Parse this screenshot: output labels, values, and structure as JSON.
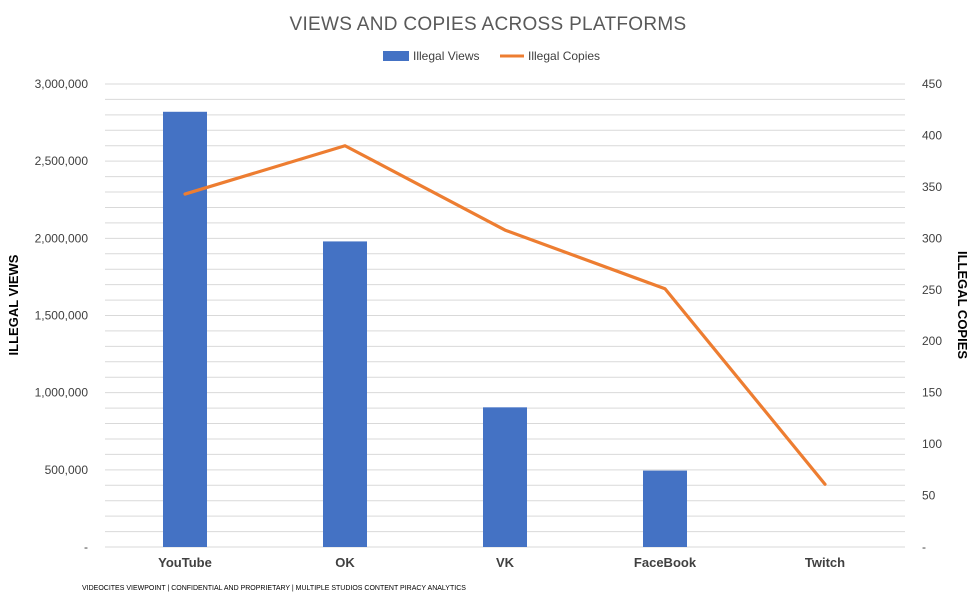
{
  "chart_data": {
    "type": "bar",
    "title": "VIEWS AND COPIES ACROSS PLATFORMS",
    "categories": [
      "YouTube",
      "OK",
      "VK",
      "FaceBook",
      "Twitch"
    ],
    "series": [
      {
        "name": "Illegal Views",
        "type": "bar",
        "axis": "left",
        "color": "#4472c4",
        "values": [
          2820000,
          1980000,
          905000,
          495000,
          0
        ]
      },
      {
        "name": "Illegal Copies",
        "type": "line",
        "axis": "right",
        "color": "#ed7d31",
        "values": [
          343,
          390,
          308,
          251,
          61
        ]
      }
    ],
    "ylabel_left": "ILLEGAL VIEWS",
    "ylabel_right": "ILLEGAL COPIES",
    "ylim_left": [
      0,
      3000000
    ],
    "ylim_right": [
      0,
      450
    ],
    "yticks_left": [
      "-",
      "500,000",
      "1,000,000",
      "1,500,000",
      "2,000,000",
      "2,500,000",
      "3,000,000"
    ],
    "yticks_right": [
      "-",
      "50",
      "100",
      "150",
      "200",
      "250",
      "300",
      "350",
      "400",
      "450"
    ],
    "legend_position": "top-center",
    "grid": true
  },
  "footer": "VIDEOCITES VIEWPOINT | CONFIDENTIAL AND PROPRIETARY | MULTIPLE STUDIOS CONTENT PIRACY ANALYTICS"
}
